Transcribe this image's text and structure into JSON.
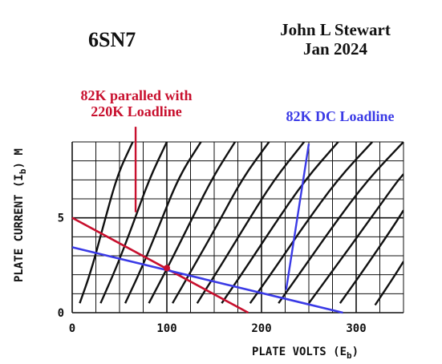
{
  "chart_data": {
    "type": "line",
    "title": "6SN7",
    "author": "John L Stewart",
    "date": "Jan 2024",
    "xlabel": "PLATE VOLTS (E",
    "xlabel_sub": "b",
    "xlabel_close": ")",
    "ylabel": "PLATE CURRENT (I",
    "ylabel_sub": "b",
    "ylabel_close": ") M",
    "xlim": [
      0,
      350
    ],
    "ylim": [
      0,
      9
    ],
    "x_ticks": [
      {
        "value": 0,
        "label": "0"
      },
      {
        "value": 100,
        "label": "100"
      },
      {
        "value": 200,
        "label": "200"
      },
      {
        "value": 300,
        "label": "300"
      }
    ],
    "y_ticks": [
      {
        "value": 0,
        "label": "0"
      },
      {
        "value": 5,
        "label": "5"
      }
    ],
    "grid": true,
    "plate_curves": [
      {
        "x": [
          8,
          20,
          33,
          48,
          64
        ],
        "y": [
          0.5,
          2.2,
          4.6,
          7.3,
          9
        ]
      },
      {
        "x": [
          30,
          46,
          63,
          81,
          100
        ],
        "y": [
          0.5,
          2.3,
          4.5,
          7.0,
          9
        ]
      },
      {
        "x": [
          56,
          73,
          92,
          113,
          136
        ],
        "y": [
          0.5,
          2.3,
          4.6,
          7.2,
          9
        ]
      },
      {
        "x": [
          81,
          101,
          123,
          148,
          172
        ],
        "y": [
          0.5,
          2.4,
          4.6,
          7.1,
          9
        ]
      },
      {
        "x": [
          106,
          128,
          153,
          180,
          208
        ],
        "y": [
          0.5,
          2.4,
          4.6,
          7.1,
          9
        ]
      },
      {
        "x": [
          132,
          156,
          183,
          213,
          245
        ],
        "y": [
          0.5,
          2.4,
          4.6,
          7.0,
          9
        ]
      },
      {
        "x": [
          158,
          184,
          213,
          246,
          281
        ],
        "y": [
          0.5,
          2.4,
          4.6,
          7.0,
          9
        ]
      },
      {
        "x": [
          188,
          215,
          245,
          280,
          317
        ],
        "y": [
          0.5,
          2.4,
          4.6,
          7.0,
          9
        ]
      },
      {
        "x": [
          218,
          245,
          276,
          312,
          350
        ],
        "y": [
          0.5,
          2.4,
          4.6,
          7.0,
          9
        ]
      },
      {
        "x": [
          250,
          278,
          310,
          343,
          350
        ],
        "y": [
          0.5,
          2.4,
          4.6,
          6.9,
          7.3
        ]
      },
      {
        "x": [
          283,
          310,
          340,
          350
        ],
        "y": [
          0.5,
          2.4,
          4.6,
          5.4
        ]
      },
      {
        "x": [
          320,
          340,
          350
        ],
        "y": [
          0.4,
          1.9,
          2.7
        ]
      }
    ],
    "series": [
      {
        "name": "82K paralled with 220K Loadline",
        "line1": "82K paralled with",
        "line2": "220K Loadline",
        "color": "#c8102e",
        "x": [
          0,
          186
        ],
        "y": [
          5.0,
          0.0
        ]
      },
      {
        "name": "82K DC Loadline",
        "color": "#3a3ae6",
        "x": [
          0,
          286
        ],
        "y": [
          3.45,
          0.0
        ]
      }
    ],
    "operating_point": {
      "x": 100,
      "y": 2.35,
      "color": "#c8102e"
    },
    "annotation_pointers": [
      {
        "series": 0,
        "x": [
          67,
          67
        ],
        "y": [
          5.3,
          9.8
        ]
      },
      {
        "series": 1,
        "x": [
          226,
          250
        ],
        "y": [
          1.2,
          8.9
        ]
      }
    ]
  }
}
